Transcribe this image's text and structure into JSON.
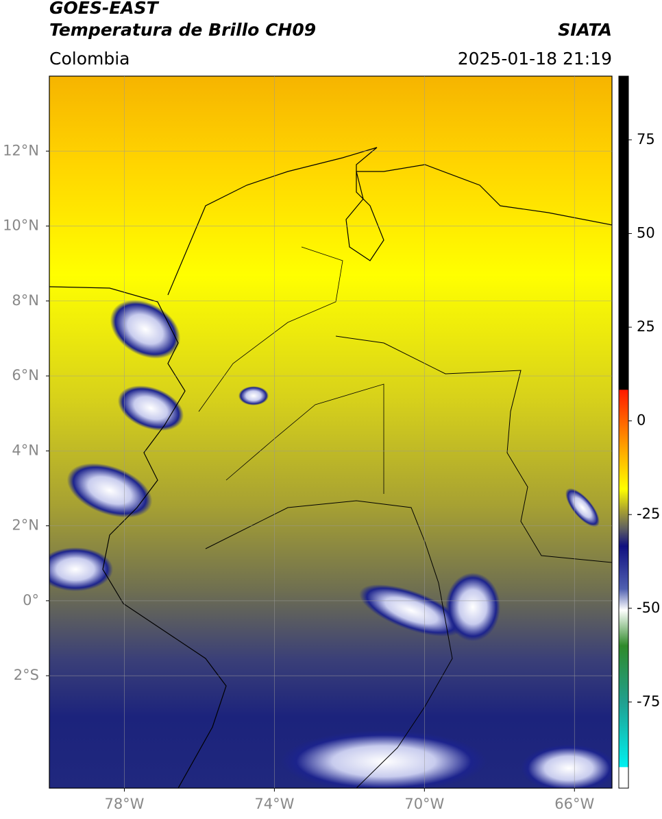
{
  "header": {
    "title": "GOES-EAST",
    "subtitle": "Temperatura de Brillo CH09",
    "region": "Colombia",
    "source": "SIATA",
    "datetime": "2025-01-18 21:19"
  },
  "map": {
    "type": "map",
    "xlim": [
      -80,
      -65
    ],
    "ylim": [
      -5,
      14
    ],
    "grid": true,
    "xticks": [
      {
        "value": -78,
        "label": "78°W"
      },
      {
        "value": -74,
        "label": "74°W"
      },
      {
        "value": -70,
        "label": "70°W"
      },
      {
        "value": -66,
        "label": "66°W"
      }
    ],
    "yticks": [
      {
        "value": 12,
        "label": "12°N"
      },
      {
        "value": 10,
        "label": "10°N"
      },
      {
        "value": 8,
        "label": "8°N"
      },
      {
        "value": 6,
        "label": "6°N"
      },
      {
        "value": 4,
        "label": "4°N"
      },
      {
        "value": 2,
        "label": "2°N"
      },
      {
        "value": 0,
        "label": "0°"
      },
      {
        "value": -2,
        "label": "2°S"
      }
    ]
  },
  "colorbar": {
    "clim": [
      -98,
      92
    ],
    "ticks": [
      75,
      50,
      25,
      0,
      -25,
      -50,
      -75
    ]
  }
}
